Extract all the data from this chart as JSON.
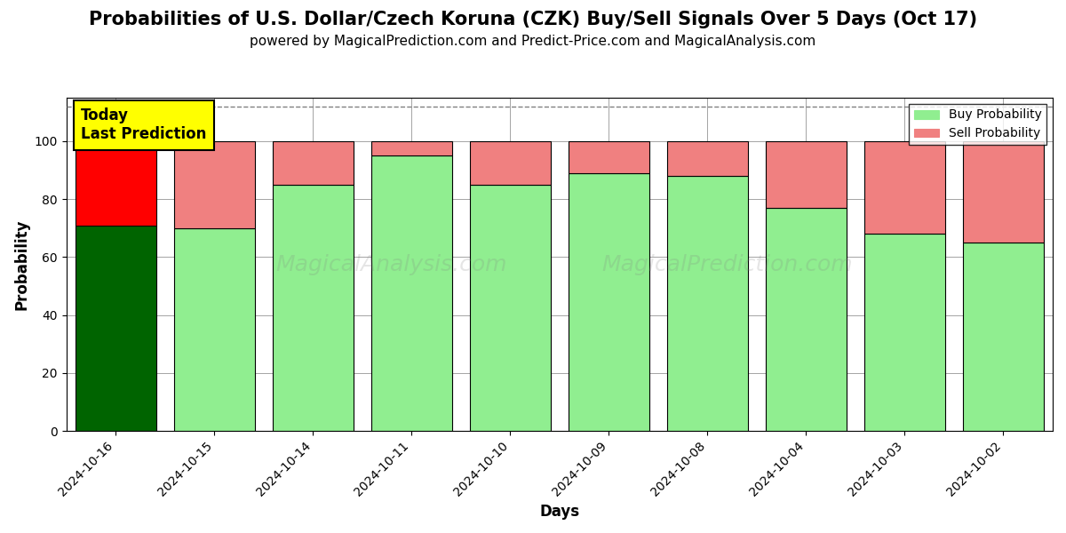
{
  "title": "Probabilities of U.S. Dollar/Czech Koruna (CZK) Buy/Sell Signals Over 5 Days (Oct 17)",
  "subtitle": "powered by MagicalPrediction.com and Predict-Price.com and MagicalAnalysis.com",
  "xlabel": "Days",
  "ylabel": "Probability",
  "categories": [
    "2024-10-16",
    "2024-10-15",
    "2024-10-14",
    "2024-10-11",
    "2024-10-10",
    "2024-10-09",
    "2024-10-08",
    "2024-10-04",
    "2024-10-03",
    "2024-10-02"
  ],
  "buy_values": [
    71,
    70,
    85,
    95,
    85,
    89,
    88,
    77,
    68,
    65
  ],
  "sell_values": [
    29,
    30,
    15,
    5,
    15,
    11,
    12,
    23,
    32,
    35
  ],
  "today_bar_buy_color": "#006400",
  "today_bar_sell_color": "#FF0000",
  "normal_bar_buy_color": "#90EE90",
  "normal_bar_sell_color": "#F08080",
  "annotation_text": "Today\nLast Prediction",
  "annotation_bg_color": "#FFFF00",
  "ylim": [
    0,
    115
  ],
  "yticks": [
    0,
    20,
    40,
    60,
    80,
    100
  ],
  "dashed_line_y": 112,
  "watermark1": "MagicalAnalysis.com",
  "watermark2": "MagicalPrediction.com",
  "legend_buy_label": "Buy Probability",
  "legend_sell_label": "Sell Probability",
  "title_fontsize": 15,
  "subtitle_fontsize": 11,
  "figsize": [
    12,
    6
  ],
  "dpi": 100,
  "bar_width": 0.82
}
